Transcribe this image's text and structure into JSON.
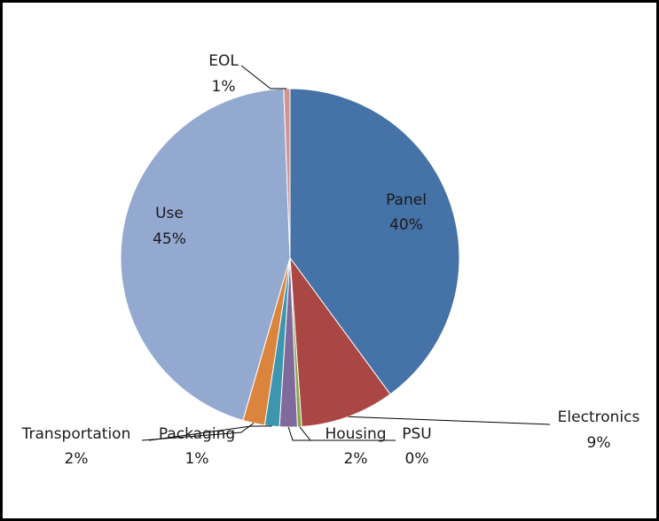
{
  "chart_data": {
    "type": "pie",
    "title": "",
    "slices": [
      {
        "name": "Panel",
        "value": 40,
        "label": "40%",
        "color": "#4572A7"
      },
      {
        "name": "Electronics",
        "value": 9,
        "label": "9%",
        "color": "#AA4643"
      },
      {
        "name": "PSU",
        "value": 0.4,
        "label": "0%",
        "color": "#89A54E"
      },
      {
        "name": "Housing",
        "value": 1.7,
        "label": "2%",
        "color": "#80699B"
      },
      {
        "name": "Packaging",
        "value": 1.4,
        "label": "1%",
        "color": "#3D96AE"
      },
      {
        "name": "Transportation",
        "value": 2.1,
        "label": "2%",
        "color": "#DB843D"
      },
      {
        "name": "Use",
        "value": 45,
        "label": "45%",
        "color": "#93A9CF"
      },
      {
        "name": "EOL",
        "value": 0.6,
        "label": "1%",
        "color": "#D19392"
      }
    ]
  }
}
